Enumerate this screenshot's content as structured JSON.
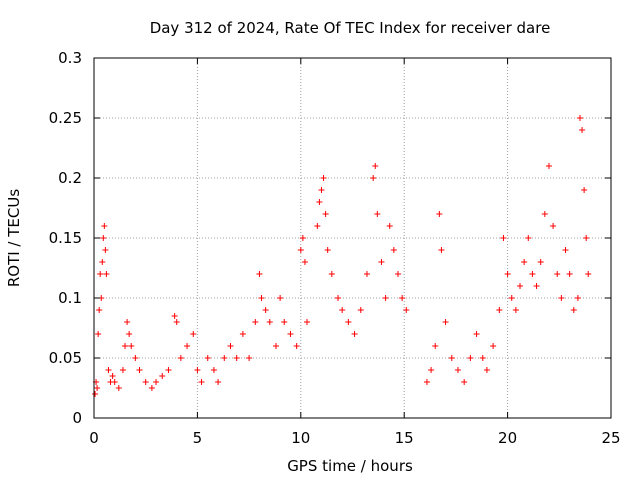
{
  "chart_data": {
    "type": "scatter",
    "title": "Day 312 of 2024, Rate Of TEC Index for receiver dare",
    "xlabel": "GPS time / hours",
    "ylabel": "ROTI / TECUs",
    "xlim": [
      0,
      25
    ],
    "ylim": [
      0,
      0.3
    ],
    "xticks": [
      0,
      5,
      10,
      15,
      20,
      25
    ],
    "yticks": [
      0,
      0.05,
      0.1,
      0.15,
      0.2,
      0.25,
      0.3
    ],
    "x_tick_labels": [
      "0",
      "5",
      "10",
      "15",
      "20",
      "25"
    ],
    "y_tick_labels": [
      "0",
      "0.05",
      "0.1",
      "0.15",
      "0.2",
      "0.25",
      "0.3"
    ],
    "grid": true,
    "marker": "+",
    "color": "#ff0000",
    "series": [
      {
        "points": [
          [
            0.05,
            0.02
          ],
          [
            0.1,
            0.03
          ],
          [
            0.15,
            0.025
          ],
          [
            0.2,
            0.07
          ],
          [
            0.25,
            0.09
          ],
          [
            0.3,
            0.12
          ],
          [
            0.35,
            0.1
          ],
          [
            0.4,
            0.13
          ],
          [
            0.45,
            0.15
          ],
          [
            0.5,
            0.16
          ],
          [
            0.55,
            0.14
          ],
          [
            0.6,
            0.12
          ],
          [
            0.7,
            0.04
          ],
          [
            0.8,
            0.03
          ],
          [
            0.9,
            0.035
          ],
          [
            1.0,
            0.03
          ],
          [
            1.2,
            0.025
          ],
          [
            1.4,
            0.04
          ],
          [
            1.5,
            0.06
          ],
          [
            1.6,
            0.08
          ],
          [
            1.7,
            0.07
          ],
          [
            1.8,
            0.06
          ],
          [
            2.0,
            0.05
          ],
          [
            2.2,
            0.04
          ],
          [
            2.5,
            0.03
          ],
          [
            2.8,
            0.025
          ],
          [
            3.0,
            0.03
          ],
          [
            3.3,
            0.035
          ],
          [
            3.6,
            0.04
          ],
          [
            3.9,
            0.085
          ],
          [
            4.0,
            0.08
          ],
          [
            4.2,
            0.05
          ],
          [
            4.5,
            0.06
          ],
          [
            4.8,
            0.07
          ],
          [
            5.0,
            0.04
          ],
          [
            5.2,
            0.03
          ],
          [
            5.5,
            0.05
          ],
          [
            5.8,
            0.04
          ],
          [
            6.0,
            0.03
          ],
          [
            6.3,
            0.05
          ],
          [
            6.6,
            0.06
          ],
          [
            6.9,
            0.05
          ],
          [
            7.2,
            0.07
          ],
          [
            7.5,
            0.05
          ],
          [
            7.8,
            0.08
          ],
          [
            8.0,
            0.12
          ],
          [
            8.1,
            0.1
          ],
          [
            8.3,
            0.09
          ],
          [
            8.5,
            0.08
          ],
          [
            8.8,
            0.06
          ],
          [
            9.0,
            0.1
          ],
          [
            9.2,
            0.08
          ],
          [
            9.5,
            0.07
          ],
          [
            9.8,
            0.06
          ],
          [
            10.0,
            0.14
          ],
          [
            10.1,
            0.15
          ],
          [
            10.2,
            0.13
          ],
          [
            10.3,
            0.08
          ],
          [
            10.8,
            0.16
          ],
          [
            10.9,
            0.18
          ],
          [
            11.0,
            0.19
          ],
          [
            11.1,
            0.2
          ],
          [
            11.2,
            0.17
          ],
          [
            11.3,
            0.14
          ],
          [
            11.5,
            0.12
          ],
          [
            11.8,
            0.1
          ],
          [
            12.0,
            0.09
          ],
          [
            12.3,
            0.08
          ],
          [
            12.6,
            0.07
          ],
          [
            12.9,
            0.09
          ],
          [
            13.2,
            0.12
          ],
          [
            13.5,
            0.2
          ],
          [
            13.6,
            0.21
          ],
          [
            13.7,
            0.17
          ],
          [
            13.9,
            0.13
          ],
          [
            14.1,
            0.1
          ],
          [
            14.3,
            0.16
          ],
          [
            14.5,
            0.14
          ],
          [
            14.7,
            0.12
          ],
          [
            14.9,
            0.1
          ],
          [
            15.1,
            0.09
          ],
          [
            16.1,
            0.03
          ],
          [
            16.3,
            0.04
          ],
          [
            16.5,
            0.06
          ],
          [
            16.7,
            0.17
          ],
          [
            16.8,
            0.14
          ],
          [
            17.0,
            0.08
          ],
          [
            17.3,
            0.05
          ],
          [
            17.6,
            0.04
          ],
          [
            17.9,
            0.03
          ],
          [
            18.2,
            0.05
          ],
          [
            18.5,
            0.07
          ],
          [
            18.8,
            0.05
          ],
          [
            19.0,
            0.04
          ],
          [
            19.3,
            0.06
          ],
          [
            19.6,
            0.09
          ],
          [
            19.8,
            0.15
          ],
          [
            20.0,
            0.12
          ],
          [
            20.2,
            0.1
          ],
          [
            20.4,
            0.09
          ],
          [
            20.6,
            0.11
          ],
          [
            20.8,
            0.13
          ],
          [
            21.0,
            0.15
          ],
          [
            21.2,
            0.12
          ],
          [
            21.4,
            0.11
          ],
          [
            21.6,
            0.13
          ],
          [
            21.8,
            0.17
          ],
          [
            22.0,
            0.21
          ],
          [
            22.2,
            0.16
          ],
          [
            22.4,
            0.12
          ],
          [
            22.6,
            0.1
          ],
          [
            22.8,
            0.14
          ],
          [
            23.0,
            0.12
          ],
          [
            23.2,
            0.09
          ],
          [
            23.4,
            0.1
          ],
          [
            23.5,
            0.25
          ],
          [
            23.6,
            0.24
          ],
          [
            23.7,
            0.19
          ],
          [
            23.8,
            0.15
          ],
          [
            23.9,
            0.12
          ]
        ]
      }
    ]
  }
}
